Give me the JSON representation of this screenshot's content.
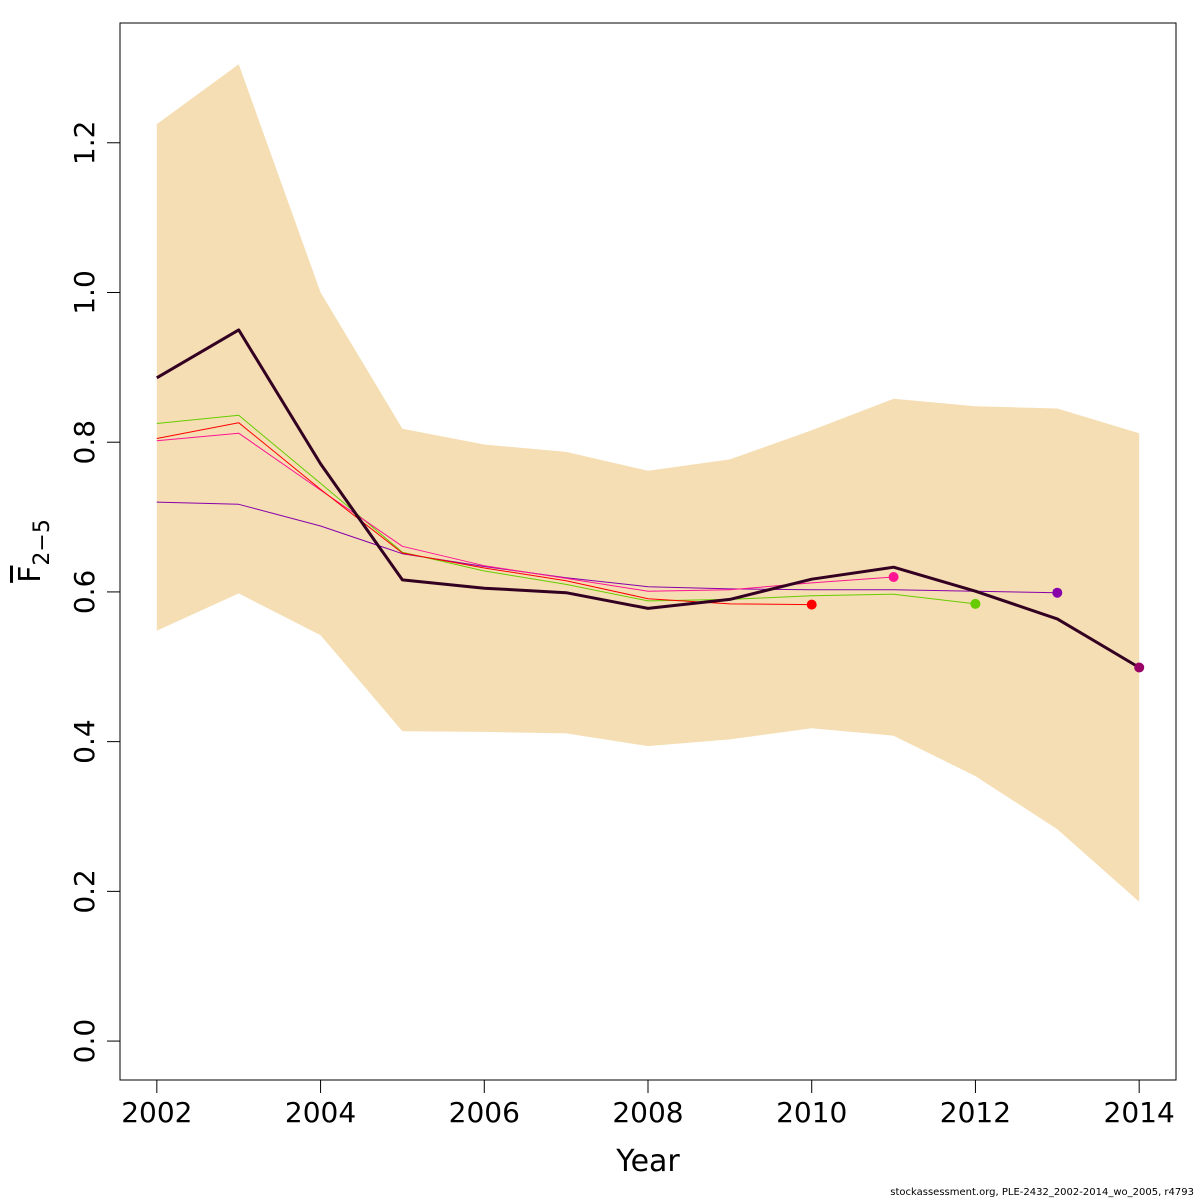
{
  "chart_data": {
    "type": "line",
    "xlabel": "Year",
    "ylabel_main": "F",
    "ylabel_sub": "2−5",
    "xlim": [
      2001.55,
      2014.45
    ],
    "ylim": [
      -0.052,
      1.36
    ],
    "x_ticks": [
      2002,
      2004,
      2006,
      2008,
      2010,
      2012,
      2014
    ],
    "y_ticks": [
      "0.0",
      "0.2",
      "0.4",
      "0.6",
      "0.8",
      "1.0",
      "1.2"
    ],
    "y_tick_values": [
      0.0,
      0.2,
      0.4,
      0.6,
      0.8,
      1.0,
      1.2
    ],
    "band": {
      "color": "#F5DEB3",
      "x": [
        2002,
        2003,
        2004,
        2005,
        2006,
        2007,
        2008,
        2009,
        2010,
        2011,
        2012,
        2013,
        2014
      ],
      "upper": [
        1.225,
        1.305,
        1.0,
        0.818,
        0.797,
        0.787,
        0.762,
        0.777,
        0.816,
        0.858,
        0.848,
        0.845,
        0.812
      ],
      "lower": [
        0.548,
        0.598,
        0.542,
        0.414,
        0.413,
        0.411,
        0.394,
        0.403,
        0.418,
        0.408,
        0.354,
        0.283,
        0.186
      ]
    },
    "series": [
      {
        "color": "#8800AA",
        "x": [
          2002,
          2003,
          2004,
          2005,
          2006,
          2007,
          2008,
          2009,
          2010,
          2011,
          2012,
          2013
        ],
        "values": [
          0.72,
          0.717,
          0.688,
          0.651,
          0.634,
          0.619,
          0.607,
          0.604,
          0.603,
          0.603,
          0.601,
          0.599
        ],
        "end_point": true
      },
      {
        "color": "#66CC00",
        "x": [
          2002,
          2003,
          2004,
          2005,
          2006,
          2007,
          2008,
          2009,
          2010,
          2011,
          2012
        ],
        "values": [
          0.825,
          0.836,
          0.745,
          0.653,
          0.628,
          0.61,
          0.588,
          0.59,
          0.595,
          0.597,
          0.584
        ],
        "end_point": true
      },
      {
        "color": "#FF1493",
        "x": [
          2002,
          2003,
          2004,
          2005,
          2006,
          2007,
          2008,
          2009,
          2010,
          2011
        ],
        "values": [
          0.802,
          0.812,
          0.736,
          0.661,
          0.635,
          0.618,
          0.601,
          0.603,
          0.612,
          0.62
        ],
        "end_point": true
      },
      {
        "color": "#FF0000",
        "x": [
          2002,
          2003,
          2004,
          2005,
          2006,
          2007,
          2008,
          2009,
          2010
        ],
        "values": [
          0.805,
          0.826,
          0.737,
          0.652,
          0.632,
          0.615,
          0.591,
          0.584,
          0.583
        ],
        "end_point": true
      },
      {
        "color": "#330022",
        "x": [
          2002,
          2003,
          2004,
          2005,
          2006,
          2007,
          2008,
          2009,
          2010,
          2011,
          2012,
          2013,
          2014
        ],
        "values": [
          0.886,
          0.95,
          0.771,
          0.616,
          0.605,
          0.599,
          0.578,
          0.59,
          0.617,
          0.633,
          0.601,
          0.564,
          0.499
        ],
        "end_point": false,
        "bold": true
      }
    ],
    "final_point": {
      "x": 2014,
      "value": 0.499,
      "color": "#990066"
    }
  },
  "credit": "stockassessment.org, PLE-2432_2002-2014_wo_2005, r4793"
}
